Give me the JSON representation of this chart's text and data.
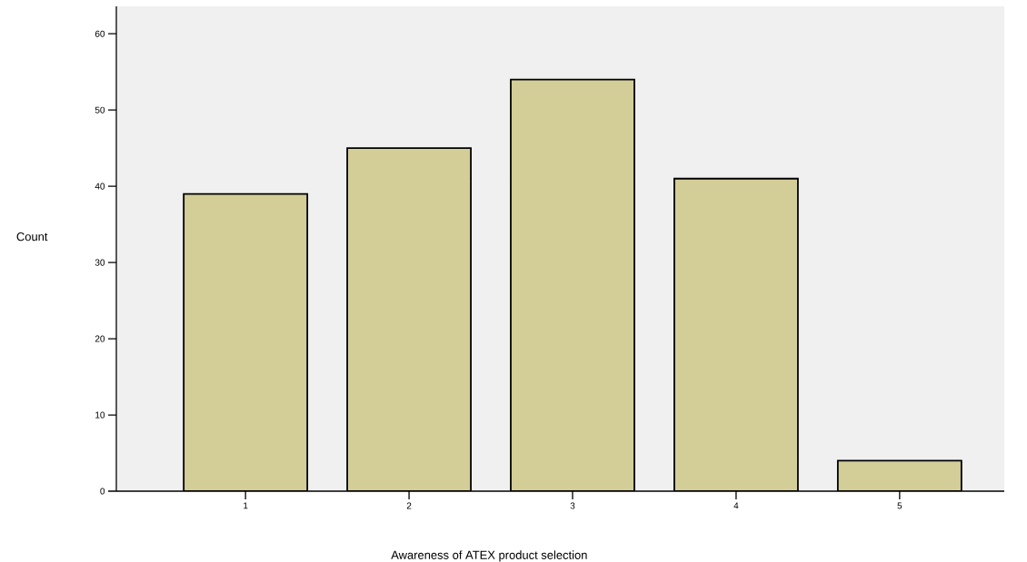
{
  "chart_data": {
    "type": "bar",
    "xlabel": "Awareness of ATEX product selection",
    "ylabel": "Count",
    "categories": [
      "1",
      "2",
      "3",
      "4",
      "5"
    ],
    "values": [
      39,
      45,
      54,
      41,
      4
    ],
    "color": "#d3cd98",
    "ylim": [
      0,
      63.6
    ],
    "yticks": [
      0,
      10,
      20,
      30,
      40,
      50,
      60
    ],
    "grid": false
  }
}
